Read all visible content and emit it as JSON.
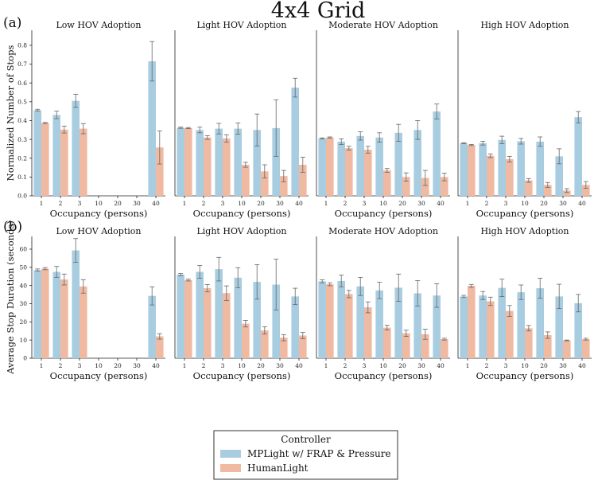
{
  "figure": {
    "title": "4x4 Grid",
    "row_labels": [
      "(a)",
      "(b)"
    ]
  },
  "legend": {
    "title": "Controller",
    "entries": [
      {
        "label": "MPLight w/ FRAP & Pressure",
        "color": "#a9cde0"
      },
      {
        "label": "HumanLight",
        "color": "#efb9a2"
      }
    ]
  },
  "chart_data": [
    {
      "type": "bar",
      "title": "Low HOV Adoption",
      "row": 0,
      "col": 0,
      "xlabel": "Occupancy (persons)",
      "ylabel": "Normalized Number of Stops",
      "ylim": [
        0,
        0.88
      ],
      "yticks": [
        0.0,
        0.1,
        0.2,
        0.3,
        0.4,
        0.5,
        0.6,
        0.7,
        0.8
      ],
      "categories": [
        "1",
        "2",
        "3",
        "10",
        "20",
        "30",
        "40"
      ],
      "series": [
        {
          "name": "MPLight w/ FRAP & Pressure",
          "values": [
            0.455,
            0.43,
            0.505,
            null,
            null,
            null,
            0.715
          ],
          "errors": [
            0.005,
            0.02,
            0.035,
            null,
            null,
            null,
            0.105
          ]
        },
        {
          "name": "HumanLight",
          "values": [
            0.387,
            0.352,
            0.357,
            null,
            null,
            null,
            0.257
          ],
          "errors": [
            0.003,
            0.018,
            0.027,
            null,
            null,
            null,
            0.088
          ]
        }
      ]
    },
    {
      "type": "bar",
      "title": "Light HOV Adoption",
      "row": 0,
      "col": 1,
      "xlabel": "Occupancy (persons)",
      "ylabel": "",
      "ylim": [
        0,
        0.88
      ],
      "yticks": [],
      "categories": [
        "1",
        "2",
        "3",
        "10",
        "20",
        "30",
        "40"
      ],
      "series": [
        {
          "name": "MPLight w/ FRAP & Pressure",
          "values": [
            0.362,
            0.35,
            0.357,
            0.357,
            0.35,
            0.36,
            0.575
          ],
          "errors": [
            0.003,
            0.015,
            0.028,
            0.03,
            0.085,
            0.15,
            0.05
          ]
        },
        {
          "name": "HumanLight",
          "values": [
            0.36,
            0.31,
            0.305,
            0.165,
            0.13,
            0.105,
            0.165
          ],
          "errors": [
            0.003,
            0.01,
            0.02,
            0.013,
            0.035,
            0.03,
            0.04
          ]
        }
      ]
    },
    {
      "type": "bar",
      "title": "Moderate HOV Adoption",
      "row": 0,
      "col": 2,
      "xlabel": "Occupancy (persons)",
      "ylabel": "",
      "ylim": [
        0,
        0.88
      ],
      "yticks": [],
      "categories": [
        "1",
        "2",
        "3",
        "10",
        "20",
        "30",
        "40"
      ],
      "series": [
        {
          "name": "MPLight w/ FRAP & Pressure",
          "values": [
            0.305,
            0.288,
            0.318,
            0.31,
            0.335,
            0.35,
            0.448
          ],
          "errors": [
            0.003,
            0.015,
            0.022,
            0.025,
            0.045,
            0.05,
            0.04
          ]
        },
        {
          "name": "HumanLight",
          "values": [
            0.31,
            0.253,
            0.245,
            0.135,
            0.1,
            0.095,
            0.1
          ],
          "errors": [
            0.003,
            0.01,
            0.018,
            0.01,
            0.022,
            0.04,
            0.02
          ]
        }
      ]
    },
    {
      "type": "bar",
      "title": "High HOV Adoption",
      "row": 0,
      "col": 3,
      "xlabel": "Occupancy (persons)",
      "ylabel": "",
      "ylim": [
        0,
        0.88
      ],
      "yticks": [],
      "categories": [
        "1",
        "2",
        "3",
        "10",
        "20",
        "30",
        "40"
      ],
      "series": [
        {
          "name": "MPLight w/ FRAP & Pressure",
          "values": [
            0.28,
            0.28,
            0.297,
            0.29,
            0.288,
            0.21,
            0.418
          ],
          "errors": [
            0.002,
            0.01,
            0.02,
            0.015,
            0.025,
            0.04,
            0.03
          ]
        },
        {
          "name": "HumanLight",
          "values": [
            0.27,
            0.213,
            0.195,
            0.082,
            0.058,
            0.028,
            0.058
          ],
          "errors": [
            0.003,
            0.01,
            0.015,
            0.01,
            0.013,
            0.01,
            0.018
          ]
        }
      ]
    },
    {
      "type": "bar",
      "title": "Low HOV Adoption",
      "row": 1,
      "col": 0,
      "xlabel": "Occupancy (persons)",
      "ylabel": "Average Stop Duration (seconds)",
      "ylim": [
        0,
        67
      ],
      "yticks": [
        0,
        10,
        20,
        30,
        40,
        50,
        60
      ],
      "categories": [
        "1",
        "2",
        "3",
        "10",
        "20",
        "30",
        "40"
      ],
      "series": [
        {
          "name": "MPLight w/ FRAP & Pressure",
          "values": [
            48.5,
            47.5,
            59.3,
            null,
            null,
            null,
            34.3
          ],
          "errors": [
            0.6,
            3.0,
            6.5,
            null,
            null,
            null,
            5.0
          ]
        },
        {
          "name": "HumanLight",
          "values": [
            49.3,
            43.3,
            39.5,
            null,
            null,
            null,
            12.0
          ],
          "errors": [
            0.6,
            3.0,
            3.7,
            null,
            null,
            null,
            1.5
          ]
        }
      ]
    },
    {
      "type": "bar",
      "title": "Light HOV Adoption",
      "row": 1,
      "col": 1,
      "xlabel": "Occupancy (persons)",
      "ylabel": "",
      "ylim": [
        0,
        67
      ],
      "yticks": [],
      "categories": [
        "1",
        "2",
        "3",
        "10",
        "20",
        "30",
        "40"
      ],
      "series": [
        {
          "name": "MPLight w/ FRAP & Pressure",
          "values": [
            46.0,
            47.5,
            49.0,
            44.3,
            42.0,
            40.5,
            34.0
          ],
          "errors": [
            0.6,
            3.5,
            6.5,
            5.5,
            9.5,
            14.0,
            4.5
          ]
        },
        {
          "name": "HumanLight",
          "values": [
            43.0,
            38.5,
            35.8,
            19.0,
            15.3,
            11.3,
            12.5
          ],
          "errors": [
            0.5,
            2.0,
            4.0,
            1.8,
            2.0,
            1.7,
            1.7
          ]
        }
      ]
    },
    {
      "type": "bar",
      "title": "Moderate HOV Adoption",
      "row": 1,
      "col": 2,
      "xlabel": "Occupancy (persons)",
      "ylabel": "",
      "ylim": [
        0,
        67
      ],
      "yticks": [],
      "categories": [
        "1",
        "2",
        "3",
        "10",
        "20",
        "30",
        "40"
      ],
      "series": [
        {
          "name": "MPLight w/ FRAP & Pressure",
          "values": [
            42.3,
            42.5,
            39.5,
            37.3,
            38.8,
            35.7,
            34.5
          ],
          "errors": [
            0.8,
            3.2,
            5.0,
            4.5,
            7.5,
            7.0,
            6.5
          ]
        },
        {
          "name": "HumanLight",
          "values": [
            40.7,
            35.3,
            28.0,
            16.8,
            13.7,
            13.2,
            10.5
          ],
          "errors": [
            0.8,
            2.0,
            3.0,
            1.3,
            1.7,
            2.8,
            0.5
          ]
        }
      ]
    },
    {
      "type": "bar",
      "title": "High HOV Adoption",
      "row": 1,
      "col": 3,
      "xlabel": "Occupancy (persons)",
      "ylabel": "",
      "ylim": [
        0,
        67
      ],
      "yticks": [],
      "categories": [
        "1",
        "2",
        "3",
        "10",
        "20",
        "30",
        "40"
      ],
      "series": [
        {
          "name": "MPLight w/ FRAP & Pressure",
          "values": [
            34.0,
            34.5,
            38.7,
            36.3,
            38.5,
            34.0,
            30.3
          ],
          "errors": [
            0.6,
            2.2,
            4.8,
            4.0,
            5.5,
            6.7,
            4.8
          ]
        },
        {
          "name": "HumanLight",
          "values": [
            39.8,
            31.3,
            26.0,
            16.5,
            12.7,
            9.8,
            10.5
          ],
          "errors": [
            0.8,
            2.3,
            3.0,
            1.5,
            1.8,
            0.2,
            0.5
          ]
        }
      ]
    }
  ]
}
